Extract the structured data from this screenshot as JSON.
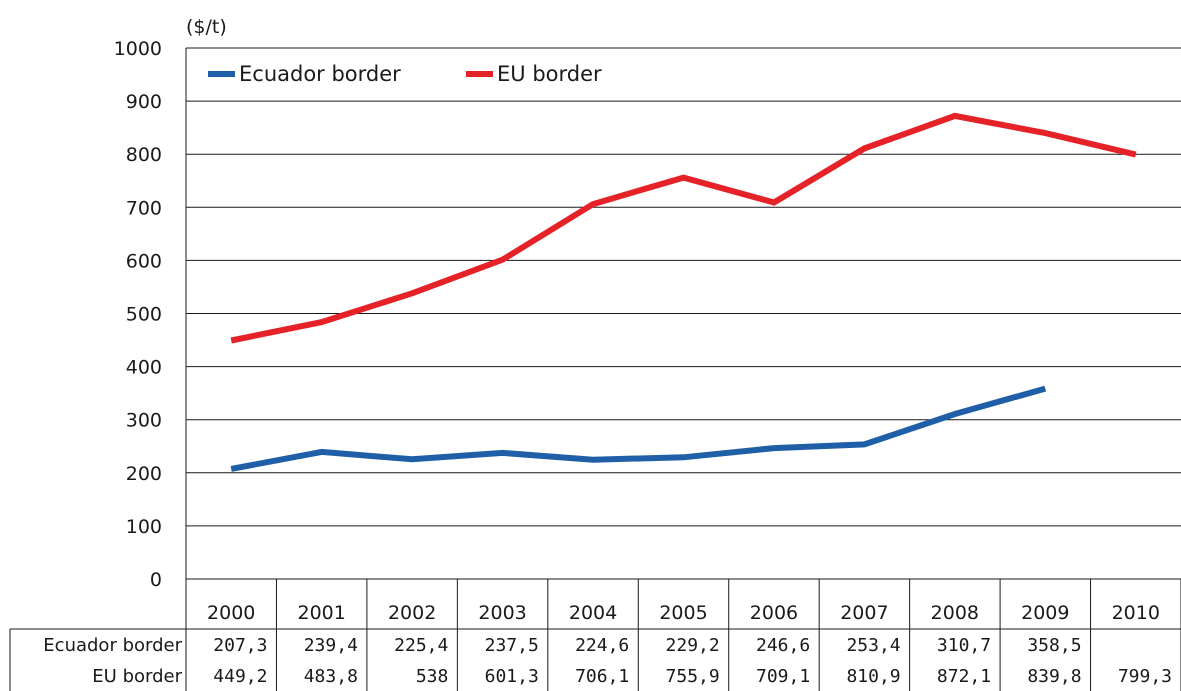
{
  "chart_data": {
    "type": "line",
    "unit_label": "($/t)",
    "ylim": [
      0,
      1000
    ],
    "yticks": [
      "0",
      "100",
      "200",
      "300",
      "400",
      "500",
      "600",
      "700",
      "800",
      "900",
      "1000"
    ],
    "categories": [
      "2000",
      "2001",
      "2002",
      "2003",
      "2004",
      "2005",
      "2006",
      "2007",
      "2008",
      "2009",
      "2010"
    ],
    "grid": true,
    "legend": "top-left",
    "series": [
      {
        "name": "Ecuador border",
        "color": "#1f5fa8",
        "values": [
          207.3,
          239.4,
          225.4,
          237.5,
          224.6,
          229.2,
          246.6,
          253.4,
          310.7,
          358.5,
          null
        ],
        "labels": [
          "207,3",
          "239,4",
          "225,4",
          "237,5",
          "224,6",
          "229,2",
          "246,6",
          "253,4",
          "310,7",
          "358,5",
          ""
        ]
      },
      {
        "name": "EU border",
        "color": "#e52228",
        "values": [
          449.2,
          483.8,
          538,
          601.3,
          706.1,
          755.9,
          709.1,
          810.9,
          872.1,
          839.8,
          799.3
        ],
        "labels": [
          "449,2",
          "483,8",
          "538",
          "601,3",
          "706,1",
          "755,9",
          "709,1",
          "810,9",
          "872,1",
          "839,8",
          "799,3"
        ]
      }
    ]
  }
}
